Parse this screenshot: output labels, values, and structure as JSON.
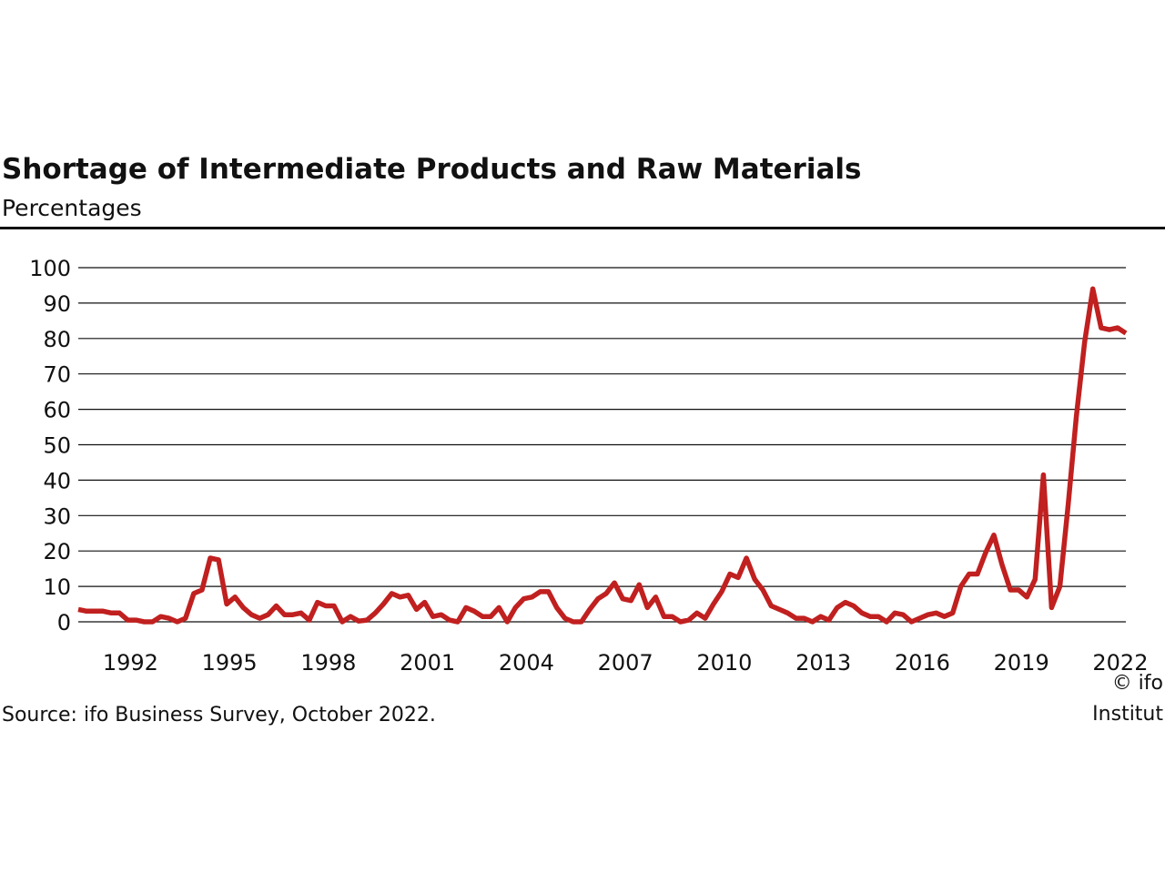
{
  "chart_data": {
    "type": "line",
    "title": "Shortage of Intermediate Products and Raw Materials",
    "subtitle": "Percentages",
    "source": "Source: ifo Business Survey, October 2022.",
    "credit": "© ifo Institut",
    "x": [
      1990.5,
      1990.75,
      1991,
      1991.25,
      1991.5,
      1991.75,
      1992,
      1992.25,
      1992.5,
      1992.75,
      1993,
      1993.25,
      1993.5,
      1993.75,
      1994,
      1994.25,
      1994.5,
      1994.75,
      1995,
      1995.25,
      1995.5,
      1995.75,
      1996,
      1996.25,
      1996.5,
      1996.75,
      1997,
      1997.25,
      1997.5,
      1997.75,
      1998,
      1998.25,
      1998.5,
      1998.75,
      1999,
      1999.25,
      1999.5,
      1999.75,
      2000,
      2000.25,
      2000.5,
      2000.75,
      2001,
      2001.25,
      2001.5,
      2001.75,
      2002,
      2002.25,
      2002.5,
      2002.75,
      2003,
      2003.25,
      2003.5,
      2003.75,
      2004,
      2004.25,
      2004.5,
      2004.75,
      2005,
      2005.25,
      2005.5,
      2005.75,
      2006,
      2006.25,
      2006.5,
      2006.75,
      2007,
      2007.25,
      2007.5,
      2007.75,
      2008,
      2008.25,
      2008.5,
      2008.75,
      2009,
      2009.25,
      2009.5,
      2009.75,
      2010,
      2010.25,
      2010.5,
      2010.75,
      2011,
      2011.25,
      2011.5,
      2011.75,
      2012,
      2012.25,
      2012.5,
      2012.75,
      2013,
      2013.25,
      2013.5,
      2013.75,
      2014,
      2014.25,
      2014.5,
      2014.75,
      2015,
      2015.25,
      2015.5,
      2015.75,
      2016,
      2016.25,
      2016.5,
      2016.75,
      2017,
      2017.25,
      2017.5,
      2017.75,
      2018,
      2018.25,
      2018.5,
      2018.75,
      2019,
      2019.25,
      2019.5,
      2019.75,
      2020,
      2020.25,
      2020.5,
      2020.75,
      2021,
      2021.25,
      2021.5,
      2021.75,
      2022,
      2022.25
    ],
    "series": [
      {
        "name": "Shortage",
        "color": "#c0201f",
        "values": [
          3.5,
          3,
          3,
          3,
          2.5,
          2.5,
          0.5,
          0.5,
          0,
          0,
          1.5,
          1,
          0,
          1,
          8,
          9,
          18,
          17.5,
          5,
          7,
          4,
          2,
          1,
          2,
          4.5,
          2,
          2,
          2.5,
          0.5,
          5.5,
          4.5,
          4.5,
          0,
          1.5,
          0.2,
          0.5,
          2.5,
          5,
          8,
          7,
          7.5,
          3.5,
          5.5,
          1.5,
          2,
          0.5,
          0,
          4,
          3,
          1.5,
          1.5,
          4,
          0,
          4,
          6.5,
          7,
          8.5,
          8.5,
          4,
          1,
          0,
          0,
          3.5,
          6.5,
          8,
          11,
          6.5,
          6,
          10.5,
          4,
          7,
          1.5,
          1.5,
          0,
          0.5,
          2.5,
          1,
          5,
          8.5,
          13.5,
          12.5,
          18,
          12,
          9,
          4.5,
          3.5,
          2.5,
          1,
          1,
          0,
          1.5,
          0.5,
          4,
          5.5,
          4.5,
          2.5,
          1.5,
          1.5,
          0,
          2.5,
          2,
          0,
          1,
          2,
          2.5,
          1.5,
          2.5,
          10,
          13.5,
          13.5,
          19.5,
          24.5,
          16,
          9,
          9,
          7,
          12,
          41.5,
          4,
          10,
          33,
          58,
          79,
          94,
          83,
          82.5,
          83,
          81.5
        ]
      }
    ],
    "xlim": [
      1990.5,
      2022.25
    ],
    "xticks": [
      1992,
      1995,
      1998,
      2001,
      2004,
      2007,
      2010,
      2013,
      2016,
      2019,
      2022
    ],
    "ylim": [
      0,
      100
    ],
    "yticks": [
      0,
      10,
      20,
      30,
      40,
      50,
      60,
      70,
      80,
      90,
      100
    ],
    "grid": true
  }
}
